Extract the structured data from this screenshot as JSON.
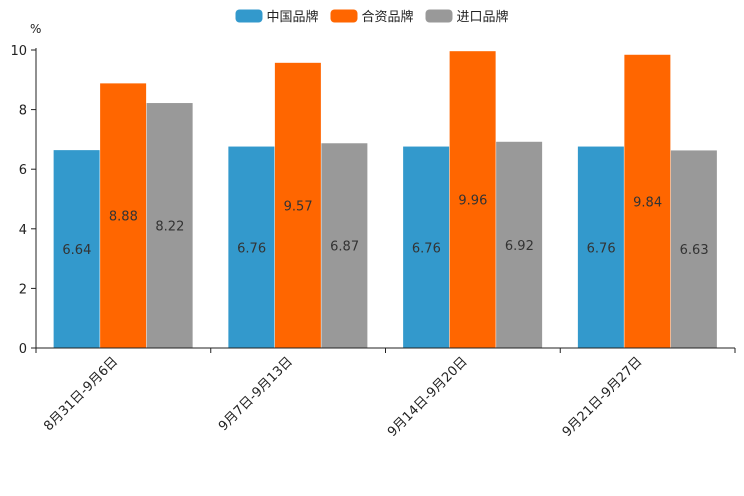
{
  "chart_data": {
    "type": "bar",
    "title": "",
    "xlabel": "",
    "ylabel": "%",
    "ylim": [
      0,
      10
    ],
    "yticks": [
      0,
      2,
      4,
      6,
      8,
      10
    ],
    "categories": [
      "8月31日-9月6日",
      "9月7日-9月13日",
      "9月14日-9月20日",
      "9月21日-9月27日"
    ],
    "series": [
      {
        "name": "中国品牌",
        "color": "#3399cc",
        "values": [
          6.64,
          6.76,
          6.76,
          6.76
        ]
      },
      {
        "name": "合资品牌",
        "color": "#ff6600",
        "values": [
          8.88,
          9.57,
          9.96,
          9.84
        ]
      },
      {
        "name": "进口品牌",
        "color": "#999999",
        "values": [
          8.22,
          6.87,
          6.92,
          6.63
        ]
      }
    ],
    "legend_position": "top-center",
    "grid": false
  }
}
